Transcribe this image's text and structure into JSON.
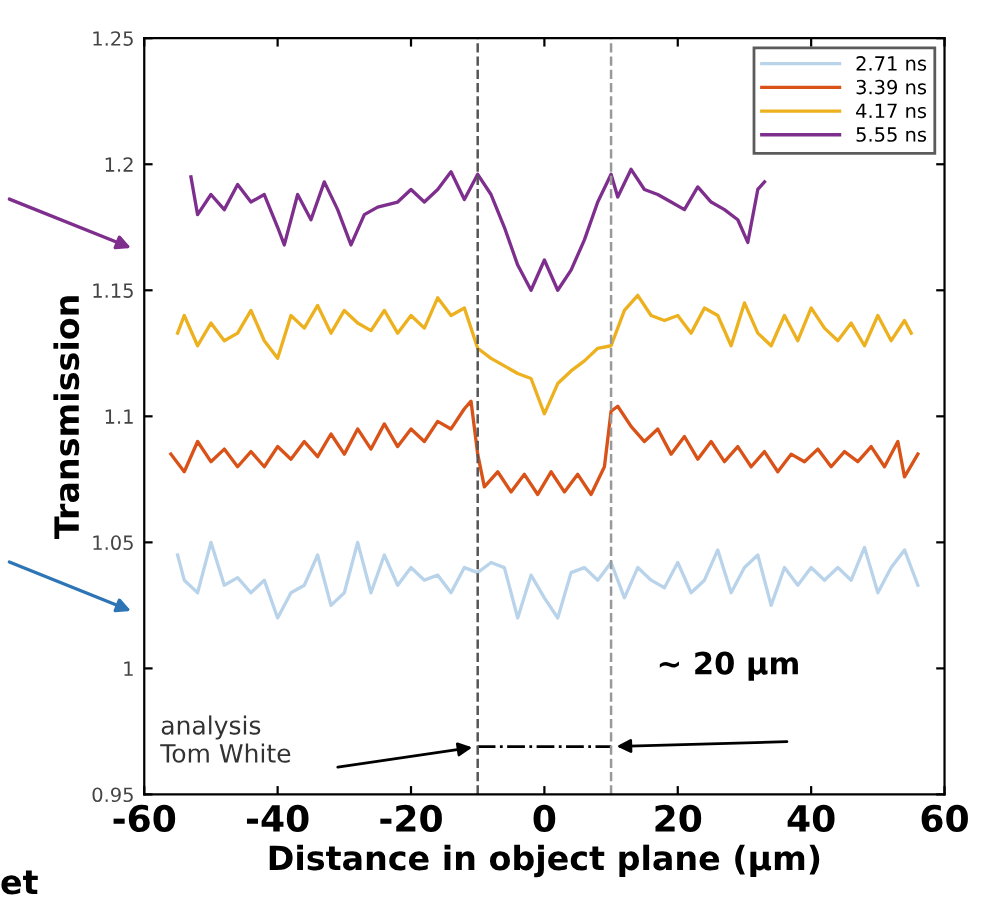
{
  "chart_data": {
    "type": "line",
    "xlabel": "Distance in object plane (µm)",
    "ylabel": "Transmission",
    "xlim": [
      -60,
      60
    ],
    "xticks": [
      -60,
      -40,
      -20,
      0,
      20,
      40,
      60
    ],
    "ylim": [
      0.95,
      1.25
    ],
    "yticks": [
      0.95,
      1,
      1.05,
      1.1,
      1.15,
      1.2,
      1.25
    ],
    "legend": "top right",
    "grid": false,
    "marker": "none",
    "line_style": "solid",
    "series": [
      {
        "name": "2.71 ns",
        "color": "#b9d4ea",
        "x": [
          -55,
          -54,
          -52,
          -50,
          -48,
          -46,
          -44,
          -42,
          -40,
          -38,
          -36,
          -34,
          -32,
          -30,
          -28,
          -26,
          -24,
          -22,
          -20,
          -18,
          -16,
          -14,
          -12,
          -10,
          -8,
          -6,
          -4,
          -2,
          0,
          2,
          4,
          6,
          8,
          10,
          12,
          14,
          16,
          18,
          20,
          22,
          24,
          26,
          28,
          30,
          32,
          34,
          36,
          38,
          40,
          42,
          44,
          46,
          48,
          50,
          52,
          54,
          56
        ],
        "values": [
          1.045,
          1.035,
          1.03,
          1.05,
          1.033,
          1.036,
          1.03,
          1.035,
          1.02,
          1.03,
          1.033,
          1.045,
          1.025,
          1.03,
          1.05,
          1.03,
          1.045,
          1.033,
          1.04,
          1.035,
          1.037,
          1.03,
          1.04,
          1.038,
          1.042,
          1.04,
          1.02,
          1.037,
          1.028,
          1.02,
          1.038,
          1.04,
          1.035,
          1.042,
          1.028,
          1.04,
          1.035,
          1.032,
          1.042,
          1.03,
          1.035,
          1.047,
          1.03,
          1.04,
          1.045,
          1.025,
          1.04,
          1.033,
          1.04,
          1.035,
          1.04,
          1.035,
          1.048,
          1.03,
          1.04,
          1.047,
          1.033
        ]
      },
      {
        "name": "3.39 ns",
        "color": "#d95319",
        "x": [
          -56,
          -54,
          -52,
          -50,
          -48,
          -46,
          -44,
          -42,
          -40,
          -38,
          -36,
          -34,
          -32,
          -30,
          -28,
          -26,
          -24,
          -22,
          -20,
          -18,
          -16,
          -14,
          -12,
          -11,
          -10,
          -9,
          -7,
          -5,
          -3,
          -1,
          1,
          3,
          5,
          7,
          9,
          10,
          11,
          13,
          15,
          17,
          19,
          21,
          23,
          25,
          27,
          29,
          31,
          33,
          35,
          37,
          39,
          41,
          43,
          45,
          47,
          49,
          51,
          53,
          54,
          56
        ],
        "values": [
          1.085,
          1.078,
          1.09,
          1.082,
          1.087,
          1.08,
          1.086,
          1.08,
          1.088,
          1.083,
          1.09,
          1.084,
          1.093,
          1.085,
          1.095,
          1.087,
          1.097,
          1.088,
          1.095,
          1.09,
          1.098,
          1.095,
          1.103,
          1.106,
          1.085,
          1.072,
          1.078,
          1.07,
          1.077,
          1.069,
          1.078,
          1.07,
          1.077,
          1.069,
          1.08,
          1.102,
          1.104,
          1.096,
          1.09,
          1.095,
          1.085,
          1.092,
          1.083,
          1.09,
          1.082,
          1.088,
          1.08,
          1.086,
          1.078,
          1.085,
          1.082,
          1.087,
          1.08,
          1.086,
          1.082,
          1.088,
          1.08,
          1.09,
          1.076,
          1.085
        ]
      },
      {
        "name": "4.17 ns",
        "color": "#edb120",
        "x": [
          -55,
          -54,
          -52,
          -50,
          -48,
          -46,
          -44,
          -42,
          -40,
          -38,
          -36,
          -34,
          -32,
          -30,
          -28,
          -26,
          -24,
          -22,
          -20,
          -18,
          -16,
          -14,
          -12,
          -10,
          -8,
          -6,
          -4,
          -2,
          0,
          2,
          4,
          6,
          8,
          10,
          12,
          14,
          16,
          18,
          20,
          22,
          24,
          26,
          28,
          30,
          32,
          34,
          36,
          38,
          40,
          42,
          44,
          46,
          48,
          50,
          52,
          54,
          55
        ],
        "values": [
          1.133,
          1.14,
          1.128,
          1.137,
          1.13,
          1.133,
          1.142,
          1.13,
          1.123,
          1.14,
          1.135,
          1.144,
          1.133,
          1.142,
          1.137,
          1.134,
          1.142,
          1.133,
          1.14,
          1.135,
          1.147,
          1.14,
          1.143,
          1.127,
          1.123,
          1.12,
          1.117,
          1.115,
          1.101,
          1.113,
          1.118,
          1.122,
          1.127,
          1.128,
          1.142,
          1.148,
          1.14,
          1.138,
          1.14,
          1.133,
          1.143,
          1.14,
          1.128,
          1.145,
          1.133,
          1.128,
          1.14,
          1.13,
          1.143,
          1.135,
          1.13,
          1.137,
          1.128,
          1.14,
          1.13,
          1.138,
          1.133
        ]
      },
      {
        "name": "5.55 ns",
        "color": "#7e2f8e",
        "x": [
          -53,
          -52,
          -50,
          -48,
          -46,
          -44,
          -42,
          -40,
          -39,
          -37,
          -35,
          -33,
          -31,
          -29,
          -27,
          -25,
          -22,
          -20,
          -18,
          -16,
          -14,
          -12,
          -10,
          -8,
          -6,
          -4,
          -2,
          0,
          2,
          4,
          6,
          8,
          10,
          11,
          13,
          15,
          17,
          19,
          21,
          23,
          25,
          27,
          29,
          30.5,
          32,
          33
        ],
        "values": [
          1.195,
          1.18,
          1.188,
          1.182,
          1.192,
          1.185,
          1.188,
          1.175,
          1.168,
          1.188,
          1.178,
          1.193,
          1.182,
          1.168,
          1.18,
          1.183,
          1.185,
          1.19,
          1.185,
          1.19,
          1.197,
          1.186,
          1.196,
          1.188,
          1.175,
          1.16,
          1.15,
          1.162,
          1.15,
          1.158,
          1.17,
          1.185,
          1.196,
          1.187,
          1.198,
          1.19,
          1.188,
          1.185,
          1.182,
          1.191,
          1.185,
          1.182,
          1.178,
          1.169,
          1.19,
          1.193
        ]
      },
      {
        "color": "#000000",
        "line_style": "dashdot",
        "x": [
          -10,
          10
        ],
        "values": [
          0.969,
          0.969
        ]
      }
    ],
    "ref_lines": [
      {
        "axis": "x",
        "value": -10,
        "color": "#555555",
        "line_style": "dashed"
      },
      {
        "axis": "x",
        "value": 10,
        "color": "#999999",
        "line_style": "dashed"
      }
    ],
    "annotations": [
      "analysis\nTom White",
      "~ 20 µm",
      "et"
    ]
  }
}
